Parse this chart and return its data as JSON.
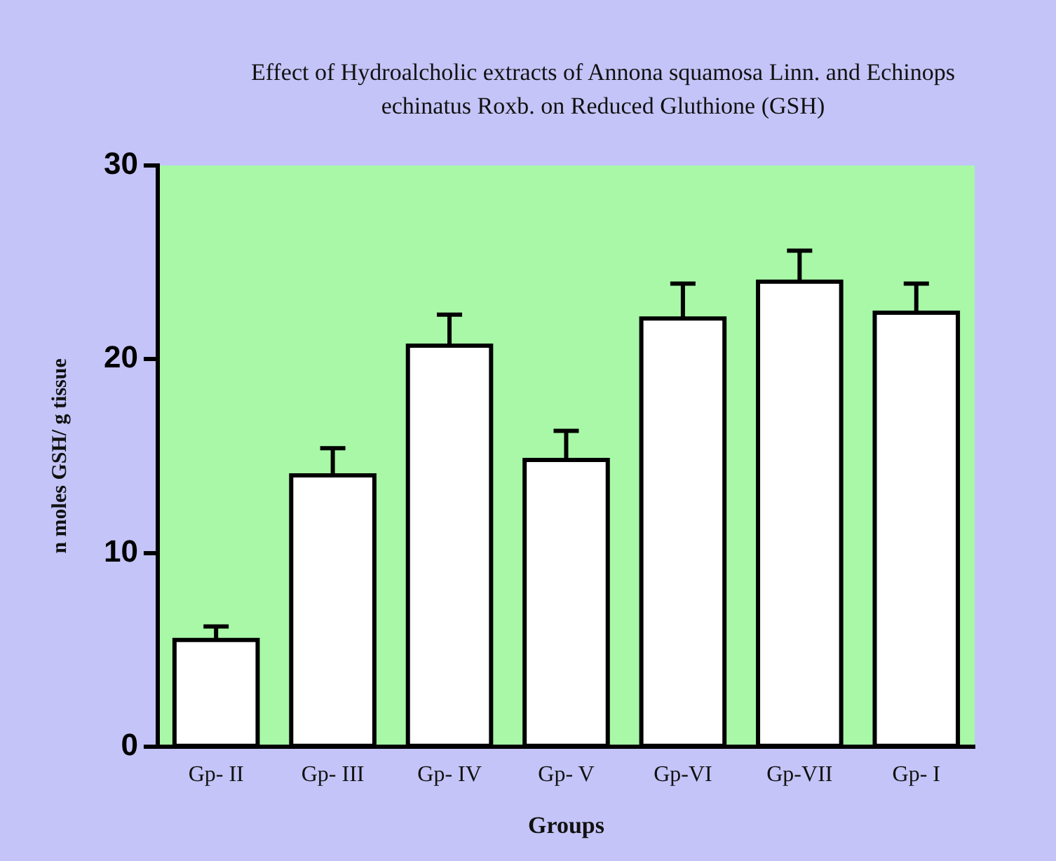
{
  "chart_data": {
    "type": "bar",
    "title": "Effect of Hydroalcholic extracts of Annona squamosa Linn. and Echinops echinatus Roxb. on Reduced Gluthione (GSH)",
    "xlabel": "Groups",
    "ylabel": "n moles GSH/ g tissue",
    "categories": [
      "Gp- II",
      "Gp- III",
      "Gp- IV",
      "Gp- V",
      "Gp-VI",
      "Gp-VII",
      "Gp- I"
    ],
    "values": [
      5.5,
      14.0,
      20.7,
      14.8,
      22.1,
      24.0,
      22.4
    ],
    "errors": [
      [
        5.5,
        6.2
      ],
      [
        14.0,
        15.4
      ],
      [
        20.7,
        22.3
      ],
      [
        14.8,
        16.3
      ],
      [
        22.1,
        23.9
      ],
      [
        24.0,
        25.6
      ],
      [
        22.4,
        23.9
      ]
    ],
    "color": "#ffffff",
    "ylim": [
      0,
      30
    ],
    "yticks": [
      0,
      10,
      20,
      30
    ],
    "grid": false,
    "legend": false
  }
}
